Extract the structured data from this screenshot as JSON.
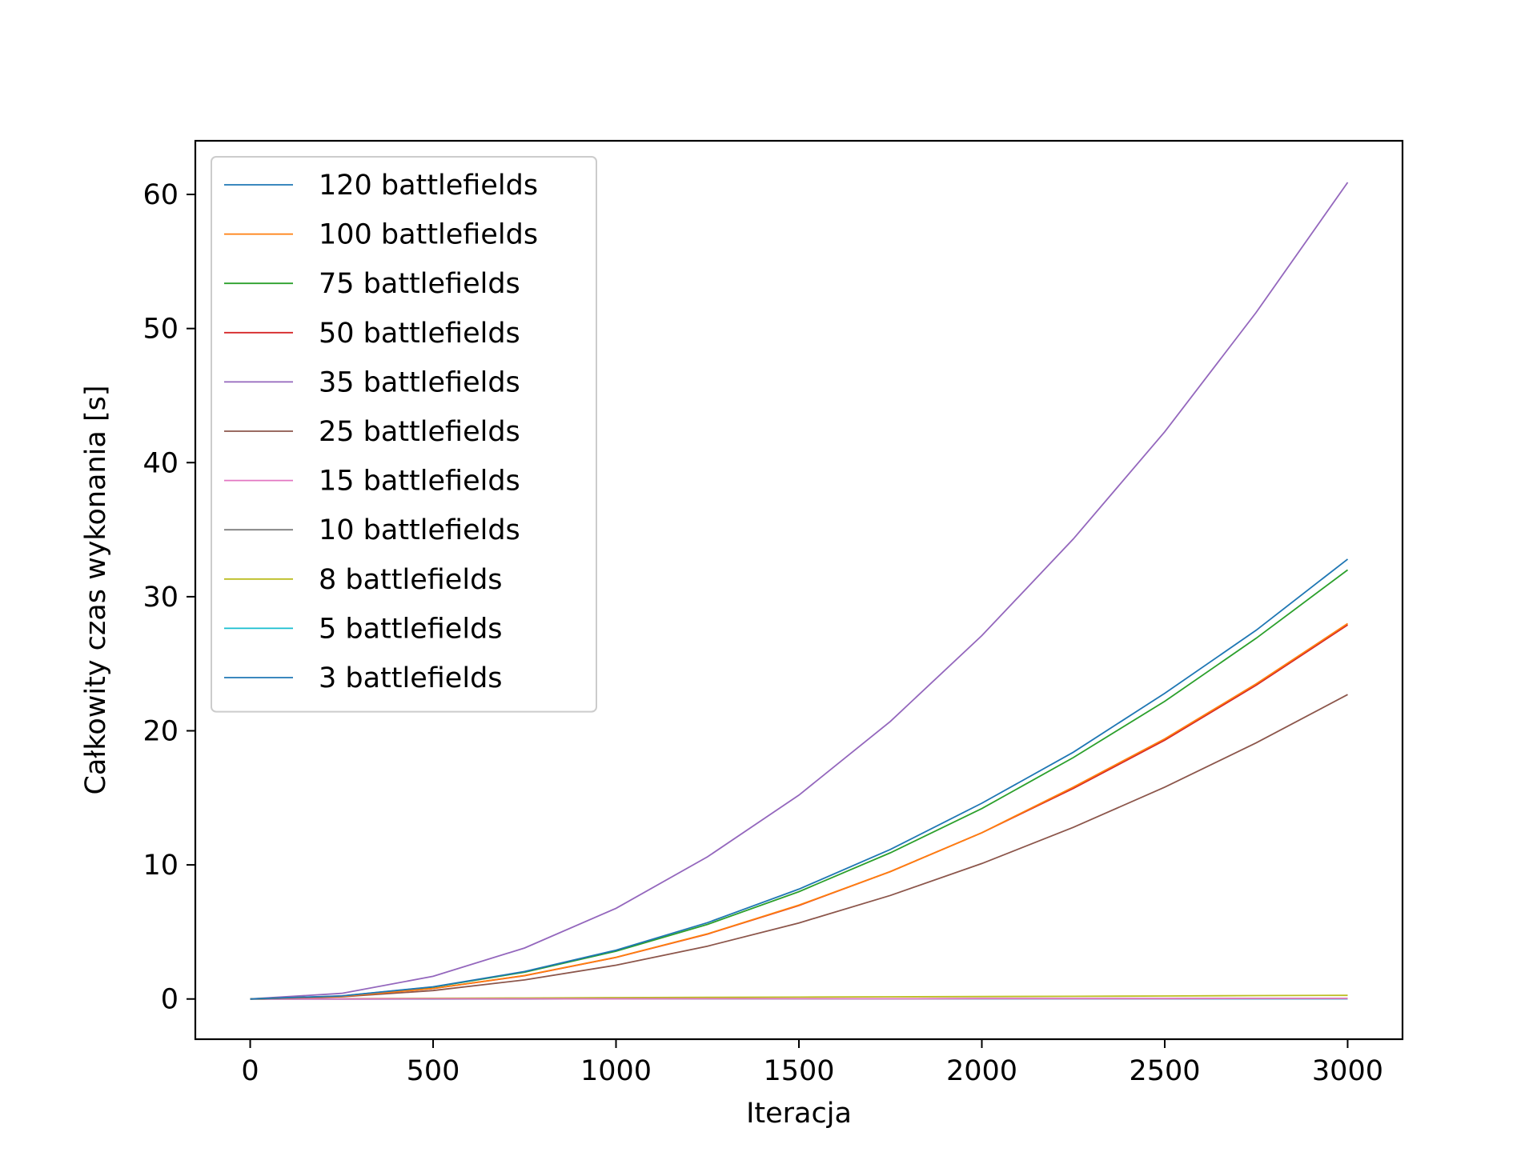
{
  "chart_data": {
    "type": "line",
    "title": "",
    "xlabel": "Iteracja",
    "ylabel": "Całkowity czas wykonania [s]",
    "xlim": [
      -150,
      3150
    ],
    "ylim": [
      -3,
      64
    ],
    "xticks": [
      0,
      500,
      1000,
      1500,
      2000,
      2500,
      3000
    ],
    "yticks": [
      0,
      10,
      20,
      30,
      40,
      50,
      60
    ],
    "grid": false,
    "legend_position": "upper-left",
    "x": [
      0,
      250,
      500,
      750,
      1000,
      1250,
      1500,
      1750,
      2000,
      2250,
      2500,
      2750,
      3000
    ],
    "series": [
      {
        "name": "120 battlefields",
        "color": "#1f77b4",
        "values": [
          0,
          0.23,
          0.91,
          2.05,
          3.64,
          5.69,
          8.19,
          11.15,
          14.6,
          18.4,
          22.8,
          27.5,
          32.8
        ]
      },
      {
        "name": "100 battlefields",
        "color": "#ff7f0e",
        "values": [
          0,
          0.19,
          0.78,
          1.75,
          3.11,
          4.86,
          7.0,
          9.5,
          12.4,
          15.8,
          19.4,
          23.5,
          28.0
        ]
      },
      {
        "name": "75 battlefields",
        "color": "#2ca02c",
        "values": [
          0,
          0.22,
          0.89,
          2.0,
          3.56,
          5.56,
          8.0,
          10.9,
          14.2,
          18.0,
          22.2,
          26.9,
          32.0
        ]
      },
      {
        "name": "50 battlefields",
        "color": "#d62728",
        "values": [
          0,
          0.19,
          0.78,
          1.74,
          3.1,
          4.84,
          6.97,
          9.5,
          12.4,
          15.7,
          19.3,
          23.4,
          27.9
        ]
      },
      {
        "name": "35 battlefields",
        "color": "#9467bd",
        "values": [
          0,
          0.42,
          1.69,
          3.8,
          6.76,
          10.6,
          15.2,
          20.7,
          27.1,
          34.3,
          42.3,
          51.2,
          60.9
        ]
      },
      {
        "name": "25 battlefields",
        "color": "#8c564b",
        "values": [
          0,
          0.16,
          0.63,
          1.42,
          2.52,
          3.94,
          5.67,
          7.72,
          10.1,
          12.8,
          15.8,
          19.1,
          22.7
        ]
      },
      {
        "name": "15 battlefields",
        "color": "#e377c2",
        "values": [
          0,
          0.0,
          0.01,
          0.01,
          0.01,
          0.02,
          0.02,
          0.02,
          0.03,
          0.03,
          0.03,
          0.04,
          0.04
        ]
      },
      {
        "name": "10 battlefields",
        "color": "#7f7f7f",
        "values": [
          0,
          0.0,
          0.01,
          0.01,
          0.01,
          0.02,
          0.02,
          0.02,
          0.03,
          0.03,
          0.03,
          0.04,
          0.04
        ]
      },
      {
        "name": "8 battlefields",
        "color": "#bcbd22",
        "values": [
          0,
          0.02,
          0.05,
          0.07,
          0.1,
          0.12,
          0.14,
          0.16,
          0.18,
          0.2,
          0.22,
          0.25,
          0.27
        ]
      },
      {
        "name": "5 battlefields",
        "color": "#17becf",
        "values": [
          0,
          0.0,
          0.0,
          0.01,
          0.01,
          0.01,
          0.01,
          0.01,
          0.01,
          0.02,
          0.02,
          0.02,
          0.02
        ]
      },
      {
        "name": "3 battlefields",
        "color": "#1f77b4",
        "values": [
          0,
          0.0,
          0.0,
          0.0,
          0.01,
          0.01,
          0.01,
          0.01,
          0.01,
          0.01,
          0.01,
          0.01,
          0.01
        ]
      }
    ]
  }
}
